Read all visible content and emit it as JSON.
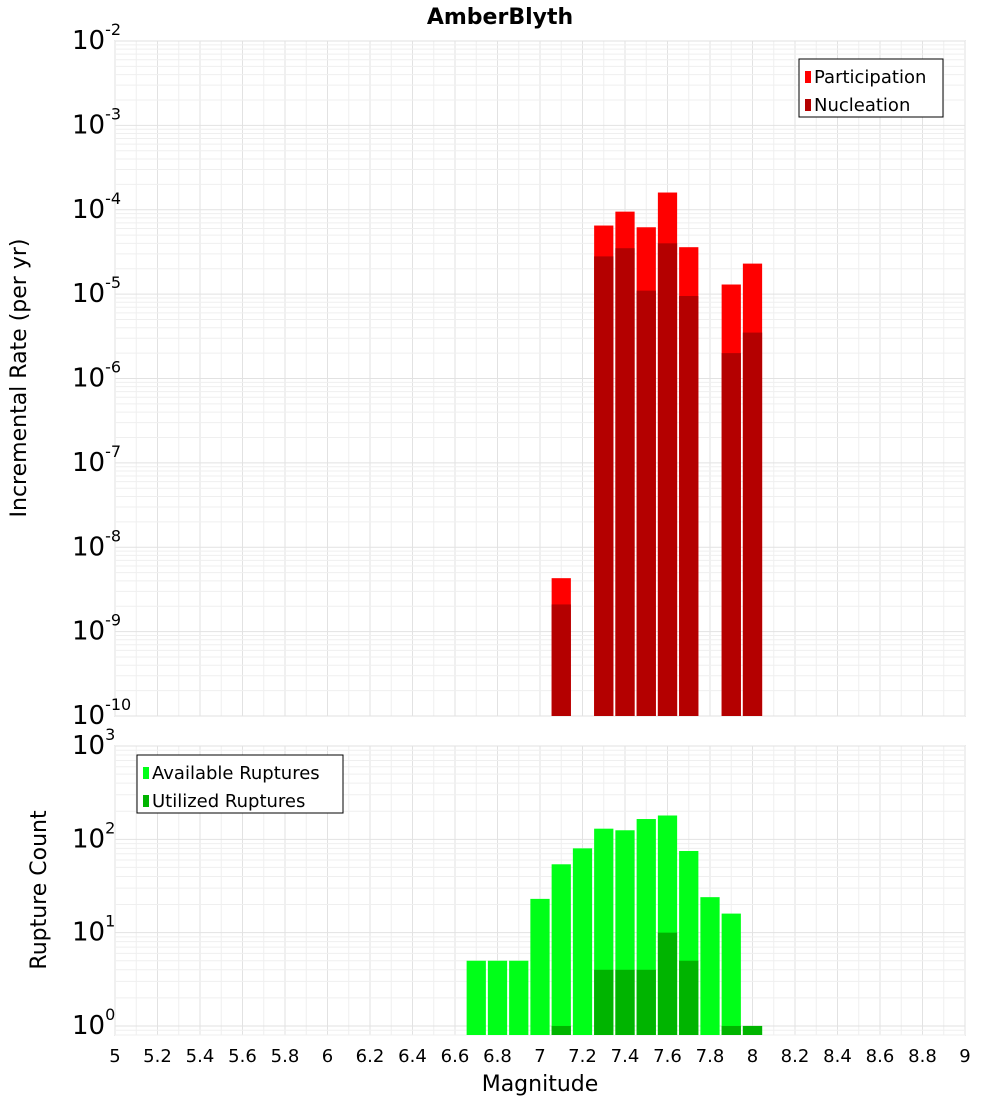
{
  "chart_data": [
    {
      "type": "bar",
      "title": "AmberBlyth",
      "xlabel": "",
      "ylabel": "Incremental Rate (per yr)",
      "y_scale": "log",
      "ylim": [
        1e-10,
        0.01
      ],
      "xlim": [
        5,
        9
      ],
      "grid": true,
      "legend_position": "top-right",
      "y_ticks": [
        {
          "base": "10",
          "exp": "-10"
        },
        {
          "base": "10",
          "exp": "-9"
        },
        {
          "base": "10",
          "exp": "-8"
        },
        {
          "base": "10",
          "exp": "-7"
        },
        {
          "base": "10",
          "exp": "-6"
        },
        {
          "base": "10",
          "exp": "-5"
        },
        {
          "base": "10",
          "exp": "-4"
        },
        {
          "base": "10",
          "exp": "-3"
        },
        {
          "base": "10",
          "exp": "-2"
        }
      ],
      "series": [
        {
          "name": "Participation",
          "color": "#ff0000",
          "points": [
            {
              "x": 7.1,
              "y": 4.3e-09
            },
            {
              "x": 7.3,
              "y": 6.5e-05
            },
            {
              "x": 7.4,
              "y": 9.5e-05
            },
            {
              "x": 7.5,
              "y": 6.2e-05
            },
            {
              "x": 7.6,
              "y": 0.00016
            },
            {
              "x": 7.7,
              "y": 3.6e-05
            },
            {
              "x": 7.9,
              "y": 1.3e-05
            },
            {
              "x": 8.0,
              "y": 2.3e-05
            }
          ]
        },
        {
          "name": "Nucleation",
          "color": "#b40000",
          "points": [
            {
              "x": 7.1,
              "y": 2.1e-09
            },
            {
              "x": 7.3,
              "y": 2.8e-05
            },
            {
              "x": 7.4,
              "y": 3.5e-05
            },
            {
              "x": 7.5,
              "y": 1.1e-05
            },
            {
              "x": 7.6,
              "y": 4e-05
            },
            {
              "x": 7.7,
              "y": 9.5e-06
            },
            {
              "x": 7.9,
              "y": 2e-06
            },
            {
              "x": 8.0,
              "y": 3.5e-06
            }
          ]
        }
      ]
    },
    {
      "type": "bar",
      "title": "",
      "xlabel": "Magnitude",
      "ylabel": "Rupture Count",
      "y_scale": "log",
      "ylim": [
        0.8,
        1000
      ],
      "xlim": [
        5,
        9
      ],
      "grid": true,
      "legend_position": "top-left",
      "x_ticks": [
        "5",
        "5.2",
        "5.4",
        "5.6",
        "5.8",
        "6",
        "6.2",
        "6.4",
        "6.6",
        "6.8",
        "7",
        "7.2",
        "7.4",
        "7.6",
        "7.8",
        "8",
        "8.2",
        "8.4",
        "8.6",
        "8.8",
        "9"
      ],
      "y_ticks": [
        {
          "base": "10",
          "exp": "0",
          "value": 1
        },
        {
          "base": "10",
          "exp": "1",
          "value": 10
        },
        {
          "base": "10",
          "exp": "2",
          "value": 100
        },
        {
          "base": "10",
          "exp": "3",
          "value": 1000
        }
      ],
      "series": [
        {
          "name": "Available Ruptures",
          "color": "#00ff18",
          "points": [
            {
              "x": 6.7,
              "y": 5
            },
            {
              "x": 6.8,
              "y": 5
            },
            {
              "x": 6.9,
              "y": 5
            },
            {
              "x": 7.0,
              "y": 23
            },
            {
              "x": 7.1,
              "y": 54
            },
            {
              "x": 7.2,
              "y": 80
            },
            {
              "x": 7.3,
              "y": 130
            },
            {
              "x": 7.4,
              "y": 125
            },
            {
              "x": 7.5,
              "y": 165
            },
            {
              "x": 7.6,
              "y": 180
            },
            {
              "x": 7.7,
              "y": 75
            },
            {
              "x": 7.8,
              "y": 24
            },
            {
              "x": 7.9,
              "y": 16
            },
            {
              "x": 8.0,
              "y": 1
            }
          ]
        },
        {
          "name": "Utilized Ruptures",
          "color": "#00b400",
          "points": [
            {
              "x": 7.1,
              "y": 1
            },
            {
              "x": 7.3,
              "y": 4
            },
            {
              "x": 7.4,
              "y": 4
            },
            {
              "x": 7.5,
              "y": 4
            },
            {
              "x": 7.6,
              "y": 10
            },
            {
              "x": 7.7,
              "y": 5
            },
            {
              "x": 7.9,
              "y": 1
            },
            {
              "x": 8.0,
              "y": 1
            }
          ]
        }
      ]
    }
  ]
}
